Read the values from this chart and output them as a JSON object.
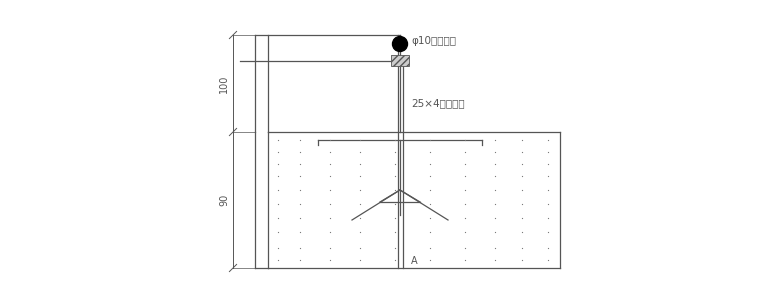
{
  "bg_color": "#ffffff",
  "line_color": "#555555",
  "text_color": "#555555",
  "label1": "φ10镀锡圆鉢",
  "label2": "25×4镀锡扁鉢",
  "dim_label_100": "100",
  "dim_label_90": "90",
  "label_A": "A",
  "figsize": [
    7.6,
    2.86
  ],
  "dpi": 100
}
